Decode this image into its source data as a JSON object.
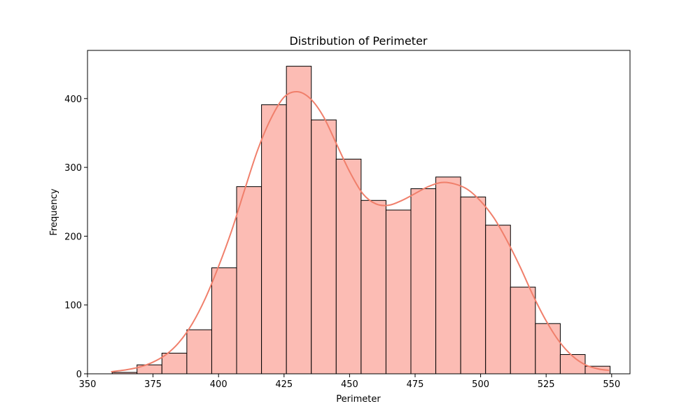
{
  "chart_data": {
    "type": "bar",
    "title": "Distribution of Perimeter",
    "xlabel": "Perimeter",
    "ylabel": "Frequency",
    "xlim": [
      350,
      557
    ],
    "ylim": [
      0,
      470
    ],
    "x_ticks": [
      350,
      375,
      400,
      425,
      450,
      475,
      500,
      525,
      550
    ],
    "y_ticks": [
      0,
      100,
      200,
      300,
      400
    ],
    "bin_edges": [
      359.4,
      368.9,
      378.4,
      387.9,
      397.4,
      406.9,
      416.4,
      425.9,
      435.4,
      444.9,
      454.4,
      463.9,
      473.4,
      482.9,
      492.4,
      501.9,
      511.4,
      520.9,
      530.4,
      539.9,
      549.4
    ],
    "values": [
      2,
      13,
      30,
      64,
      154,
      272,
      391,
      447,
      369,
      312,
      252,
      238,
      269,
      286,
      257,
      216,
      126,
      73,
      28,
      11
    ],
    "kde": {
      "x": [
        359,
        365,
        370,
        375,
        380,
        385,
        390,
        395,
        400,
        405,
        410,
        415,
        420,
        425,
        430,
        435,
        440,
        445,
        450,
        455,
        460,
        465,
        470,
        475,
        480,
        485,
        490,
        495,
        500,
        505,
        510,
        515,
        520,
        525,
        530,
        535,
        540,
        545,
        549
      ],
      "y": [
        3,
        6,
        10,
        17,
        28,
        46,
        73,
        110,
        156,
        208,
        268,
        326,
        371,
        402,
        410,
        400,
        374,
        334,
        294,
        262,
        247,
        245,
        252,
        262,
        272,
        278,
        276,
        268,
        251,
        227,
        194,
        156,
        114,
        77,
        47,
        26,
        13,
        7,
        5
      ]
    },
    "grid": false,
    "colors": {
      "bar_fill": "#fcbcb4",
      "bar_edge": "#000000",
      "kde_line": "#f07f6b"
    }
  }
}
